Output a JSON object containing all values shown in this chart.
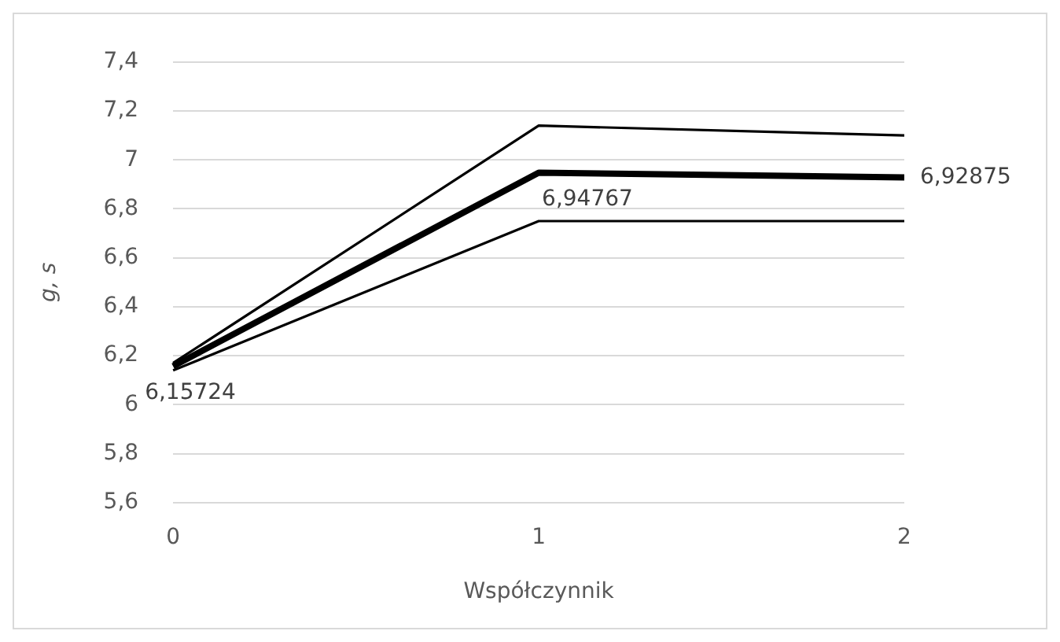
{
  "chart_data": {
    "type": "line",
    "xlabel": "Współczynnik",
    "ylabel": "g, s",
    "categories": [
      "0",
      "1",
      "2"
    ],
    "ylim": [
      5.6,
      7.4
    ],
    "yticks": [
      {
        "value": 5.6,
        "label": "5,6"
      },
      {
        "value": 5.8,
        "label": "5,8"
      },
      {
        "value": 6,
        "label": "6"
      },
      {
        "value": 6.2,
        "label": "6,2"
      },
      {
        "value": 6.4,
        "label": "6,4"
      },
      {
        "value": 6.6,
        "label": "6,6"
      },
      {
        "value": 6.8,
        "label": "6,8"
      },
      {
        "value": 7,
        "label": "7"
      },
      {
        "value": 7.2,
        "label": "7,2"
      },
      {
        "value": 7.4,
        "label": "7,4"
      }
    ],
    "grid": "y",
    "legend": false,
    "marker": "none",
    "line_style": "solid",
    "series": [
      {
        "color": "#000000",
        "values": [
          6.17,
          7.14,
          7.1
        ]
      },
      {
        "color": "#000000",
        "values": [
          6.14,
          6.75,
          6.75
        ]
      },
      {
        "color": "#000000",
        "values": [
          6.15724,
          6.94767,
          6.92875
        ],
        "value_labels": [
          "6,15724",
          "6,94767",
          "6,92875"
        ]
      }
    ]
  }
}
